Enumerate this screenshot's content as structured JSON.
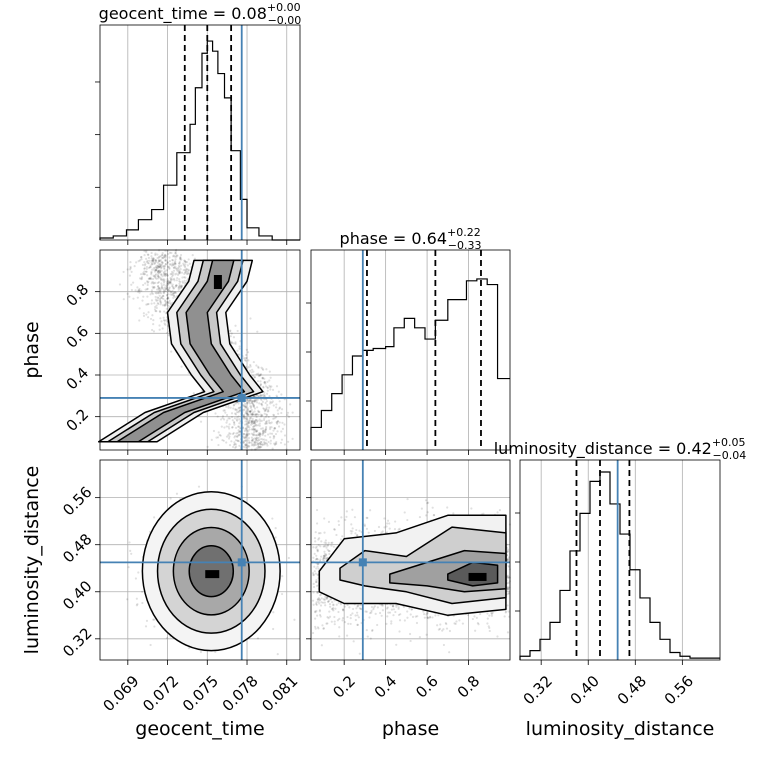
{
  "chart_data": {
    "type": "corner",
    "parameters": [
      {
        "name": "geocent_time",
        "median": "0.08",
        "plus": "+0.00",
        "minus": "−0.00",
        "range": [
          0.0669,
          0.082
        ],
        "ticks": [
          0.069,
          0.072,
          0.075,
          0.078,
          0.081
        ],
        "tick_labels": [
          "0.069",
          "0.072",
          "0.075",
          "0.078",
          "0.081"
        ],
        "quantiles": [
          0.0733,
          0.075,
          0.0768
        ],
        "truth": 0.0776,
        "hist_bins": [
          0.0669,
          0.0679,
          0.0689,
          0.0698,
          0.0708,
          0.0717,
          0.0727,
          0.0737,
          0.0741,
          0.0746,
          0.075,
          0.0754,
          0.0758,
          0.0763,
          0.0768,
          0.0775,
          0.078,
          0.0789,
          0.0799,
          0.082
        ],
        "hist_counts": [
          0.01,
          0.02,
          0.05,
          0.1,
          0.15,
          0.27,
          0.43,
          0.57,
          0.75,
          0.92,
          0.98,
          0.93,
          0.82,
          0.7,
          0.44,
          0.2,
          0.06,
          0.02,
          0.0
        ]
      },
      {
        "name": "phase",
        "median": "0.64",
        "plus": "+0.22",
        "minus": "−0.33",
        "range": [
          0.04,
          1.0
        ],
        "ticks": [
          0.2,
          0.4,
          0.6,
          0.8
        ],
        "tick_labels": [
          "0.2",
          "0.4",
          "0.6",
          "0.8"
        ],
        "quantiles": [
          0.31,
          0.64,
          0.86
        ],
        "truth": 0.29,
        "hist_bins": [
          0.04,
          0.09,
          0.14,
          0.19,
          0.24,
          0.29,
          0.34,
          0.4,
          0.44,
          0.49,
          0.54,
          0.59,
          0.64,
          0.7,
          0.74,
          0.79,
          0.84,
          0.89,
          0.94,
          1.0
        ],
        "hist_counts": [
          0.12,
          0.21,
          0.3,
          0.4,
          0.5,
          0.53,
          0.54,
          0.55,
          0.65,
          0.7,
          0.65,
          0.59,
          0.69,
          0.8,
          0.8,
          0.9,
          0.91,
          0.88,
          0.38
        ]
      },
      {
        "name": "luminosity_distance",
        "median": "0.42",
        "plus": "+0.05",
        "minus": "−0.04",
        "range": [
          0.284,
          0.624
        ],
        "ticks": [
          0.32,
          0.4,
          0.48,
          0.56
        ],
        "tick_labels": [
          "0.32",
          "0.40",
          "0.48",
          "0.56"
        ],
        "quantiles": [
          0.38,
          0.42,
          0.47
        ],
        "truth": 0.45,
        "hist_bins": [
          0.284,
          0.301,
          0.318,
          0.335,
          0.352,
          0.369,
          0.386,
          0.403,
          0.42,
          0.437,
          0.454,
          0.471,
          0.488,
          0.505,
          0.522,
          0.539,
          0.556,
          0.573,
          0.59,
          0.624
        ],
        "hist_counts": [
          0.02,
          0.05,
          0.11,
          0.2,
          0.37,
          0.58,
          0.78,
          0.95,
          1.0,
          0.83,
          0.67,
          0.48,
          0.33,
          0.2,
          0.11,
          0.04,
          0.02,
          0.01,
          0.01
        ]
      }
    ],
    "contours_2d": [
      {
        "x": "geocent_time",
        "y": "phase"
      },
      {
        "x": "geocent_time",
        "y": "luminosity_distance"
      },
      {
        "x": "phase",
        "y": "luminosity_distance"
      }
    ],
    "truth_color": "#4682b4",
    "quantile_style": "dashed",
    "grid": true
  }
}
